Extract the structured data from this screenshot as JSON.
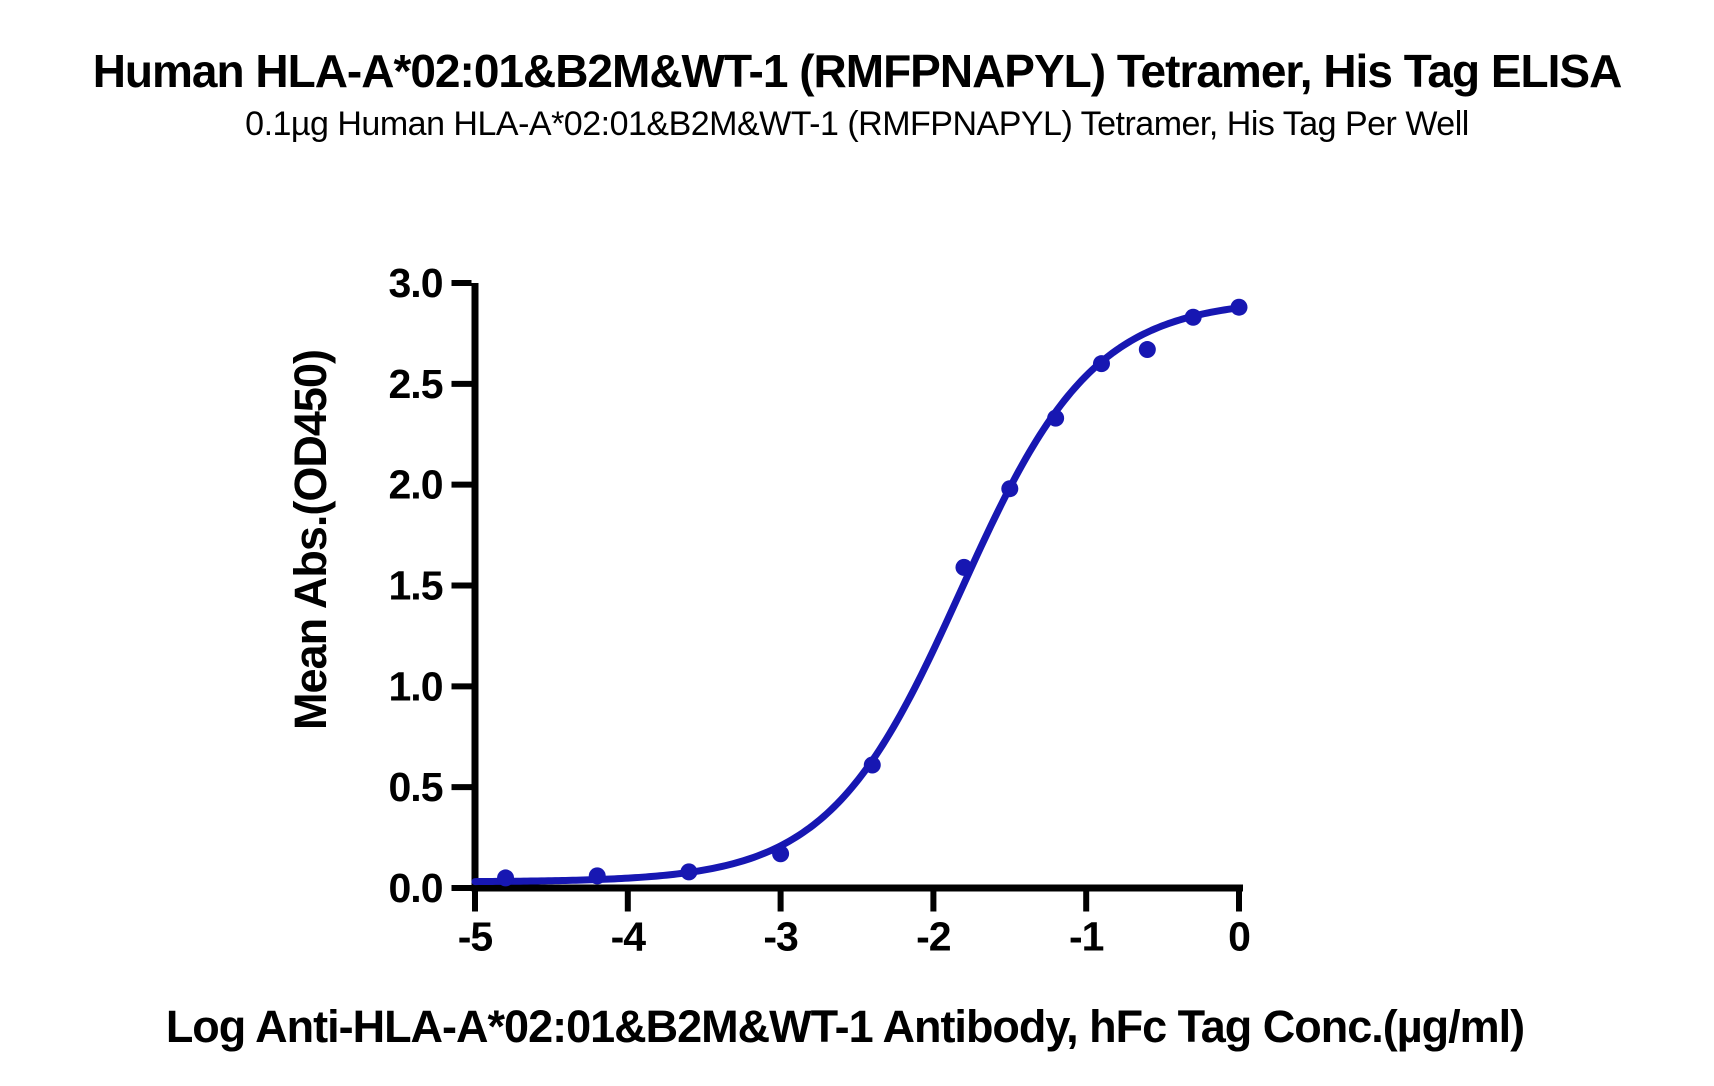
{
  "header": {
    "title": "Human HLA-A*02:01&B2M&WT-1 (RMFPNAPYL) Tetramer, His Tag ELISA",
    "subtitle": "0.1µg Human HLA-A*02:01&B2M&WT-1 (RMFPNAPYL) Tetramer, His Tag Per Well"
  },
  "chart_data": {
    "type": "scatter",
    "title": "Human HLA-A*02:01&B2M&WT-1 (RMFPNAPYL) Tetramer, His Tag ELISA",
    "subtitle": "0.1µg Human HLA-A*02:01&B2M&WT-1 (RMFPNAPYL) Tetramer, His Tag Per Well",
    "xlabel": "Log Anti-HLA-A*02:01&B2M&WT-1 Antibody, hFc Tag Conc.(µg/ml)",
    "ylabel": "Mean Abs.(OD450)",
    "xlim": [
      -5,
      0
    ],
    "ylim": [
      0,
      3
    ],
    "x_ticks": [
      -5,
      -4,
      -3,
      -2,
      -1,
      0
    ],
    "x_tick_labels": [
      "-5",
      "-4",
      "-3",
      "-2",
      "-1",
      "0"
    ],
    "y_ticks": [
      0,
      0.5,
      1,
      1.5,
      2,
      2.5,
      3
    ],
    "y_tick_labels": [
      "0.0",
      "0.5",
      "1.0",
      "1.5",
      "2.0",
      "2.5",
      "3.0"
    ],
    "grid": false,
    "legend": null,
    "axis_color": "#000000",
    "series": [
      {
        "name": "Anti-HLA-A*02:01&B2M&WT-1 Antibody, hFc Tag",
        "color": "#1717b2",
        "marker": "circle",
        "points": [
          [
            -4.8,
            0.05
          ],
          [
            -4.2,
            0.06
          ],
          [
            -3.6,
            0.08
          ],
          [
            -3.0,
            0.17
          ],
          [
            -2.4,
            0.61
          ],
          [
            -1.8,
            1.59
          ],
          [
            -1.5,
            1.98
          ],
          [
            -1.2,
            2.33
          ],
          [
            -0.9,
            2.6
          ],
          [
            -0.6,
            2.67
          ],
          [
            -0.3,
            2.83
          ],
          [
            0,
            2.88
          ]
        ],
        "fit_curve": {
          "model": "4PL",
          "bottom": 0.03,
          "top": 2.92,
          "logEC50": -1.82,
          "hill": 1.0,
          "x_start": -5,
          "x_end": 0.02
        }
      }
    ]
  }
}
